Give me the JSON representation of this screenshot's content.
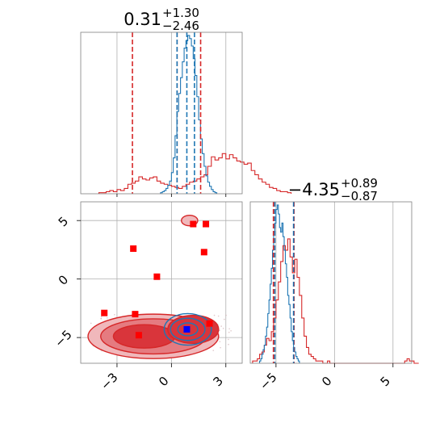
{
  "colors": {
    "red": "#d62728",
    "blue": "#1f77b4",
    "grid": "#b0b0b0",
    "axis": "#808080",
    "marker_red": "#ff0000",
    "marker_blue": "#0000ff"
  },
  "chart_data": [
    {
      "type": "histogram",
      "panel": "top-left",
      "title_value": "0.31",
      "title_plus": "+1.30",
      "title_minus": "−2.46",
      "xlim": [
        -5,
        3.9
      ],
      "grid": true,
      "series": [
        {
          "color": "red",
          "bin_start": -4.0,
          "bin_width": 0.2,
          "counts": [
            1,
            1,
            2,
            3,
            2,
            4,
            3,
            5,
            9,
            10,
            12,
            16,
            14,
            13,
            15,
            16,
            12,
            10,
            9,
            8,
            7,
            6,
            5,
            7,
            9,
            11,
            12,
            14,
            16,
            18,
            26,
            35,
            32,
            34,
            38,
            33,
            37,
            34,
            31,
            30,
            28,
            29,
            22,
            18,
            14,
            11,
            9,
            6,
            5,
            3,
            2,
            2,
            1
          ]
        },
        {
          "color": "blue",
          "bin_start": -0.6,
          "bin_width": 0.1,
          "counts": [
            1,
            2,
            3,
            5,
            8,
            12,
            20,
            34,
            55,
            78,
            95,
            110,
            125,
            138,
            145,
            150,
            147,
            140,
            128,
            112,
            92,
            70,
            52,
            38,
            26,
            17,
            11,
            7,
            4,
            2,
            1
          ]
        }
      ],
      "quantile_lines": [
        {
          "color": "red",
          "values": [
            -2.15,
            0.31,
            1.61
          ]
        },
        {
          "color": "blue",
          "values": [
            0.31,
            0.85,
            1.27
          ]
        }
      ]
    },
    {
      "type": "histogram",
      "panel": "bottom-right",
      "title_value": "−4.35",
      "title_plus": "+0.89",
      "title_minus": "−0.87",
      "xlim": [
        -7.2,
        6.6
      ],
      "grid": true,
      "x_ticks": [
        -5,
        0,
        5
      ],
      "x_tick_labels": [
        "−5",
        "0",
        "5"
      ],
      "series": [
        {
          "color": "red",
          "bin_start": -7.0,
          "bin_width": 0.2,
          "counts": [
            1,
            1,
            2,
            4,
            5,
            8,
            11,
            10,
            14,
            20,
            28,
            36,
            45,
            52,
            50,
            55,
            47,
            40,
            46,
            38,
            30,
            20,
            12,
            7,
            4,
            3,
            2,
            1,
            1,
            1,
            0,
            0,
            1,
            0,
            0,
            0,
            0,
            0,
            0,
            0,
            0,
            0,
            0,
            0,
            0,
            0,
            0,
            0,
            0,
            0,
            0,
            0,
            0,
            0,
            0,
            0,
            0,
            0,
            0,
            0,
            0,
            0,
            0,
            0,
            0,
            1,
            2,
            1,
            1,
            0,
            0
          ]
        },
        {
          "color": "blue",
          "bin_start": -6.4,
          "bin_width": 0.1,
          "counts": [
            1,
            2,
            4,
            6,
            8,
            12,
            16,
            22,
            28,
            35,
            42,
            50,
            58,
            62,
            68,
            70,
            66,
            60,
            58,
            62,
            56,
            50,
            44,
            38,
            30,
            26,
            20,
            14,
            10,
            7,
            5,
            3,
            2,
            1
          ]
        }
      ],
      "quantile_lines": [
        {
          "color": "red",
          "values": [
            -5.22,
            -3.46
          ]
        },
        {
          "color": "blue",
          "values": [
            -5.1,
            -3.5
          ]
        }
      ]
    },
    {
      "type": "contour",
      "panel": "bottom-left",
      "xlim": [
        -5,
        3.9
      ],
      "ylim": [
        -7.2,
        6.6
      ],
      "grid": true,
      "x_ticks": [
        -3,
        0,
        3
      ],
      "x_tick_labels": [
        "−3",
        "0",
        "3"
      ],
      "y_ticks": [
        -5,
        0,
        5
      ],
      "y_tick_labels": [
        "−5",
        "0",
        "5"
      ],
      "red_regions": [
        {
          "cx": -1.0,
          "cy": -4.9,
          "rx": 3.6,
          "ry": 1.9,
          "level": 1
        },
        {
          "cx": -1.0,
          "cy": -4.9,
          "rx": 2.9,
          "ry": 1.5,
          "level": 2
        },
        {
          "cx": -1.5,
          "cy": -4.9,
          "rx": 1.7,
          "ry": 1.0,
          "level": 3
        },
        {
          "cx": 1.2,
          "cy": -4.3,
          "rx": 1.4,
          "ry": 1.2,
          "level": 3
        },
        {
          "cx": 1.0,
          "cy": 5.0,
          "rx": 0.45,
          "ry": 0.45,
          "level": 1
        }
      ],
      "blue_regions": [
        {
          "cx": 0.9,
          "cy": -4.3,
          "rx": 1.3,
          "ry": 1.35
        },
        {
          "cx": 0.9,
          "cy": -4.3,
          "rx": 0.95,
          "ry": 0.95
        },
        {
          "cx": 0.9,
          "cy": -4.3,
          "rx": 0.55,
          "ry": 0.55
        }
      ],
      "red_points": [
        [
          -3.7,
          -2.9
        ],
        [
          -2.1,
          2.6
        ],
        [
          -2.0,
          -3.0
        ],
        [
          -1.8,
          -4.8
        ],
        [
          -0.8,
          0.2
        ],
        [
          1.2,
          4.7
        ],
        [
          1.9,
          4.7
        ],
        [
          1.8,
          2.3
        ],
        [
          2.1,
          -3.8
        ]
      ],
      "blue_points": [
        [
          0.85,
          -4.3
        ]
      ]
    }
  ]
}
